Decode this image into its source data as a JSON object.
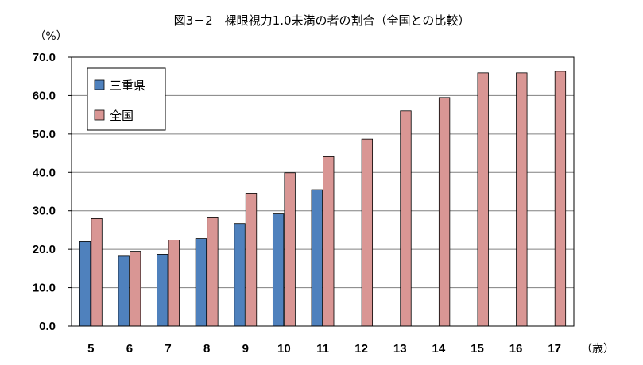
{
  "chart_data": {
    "type": "bar",
    "title": "図3－2　裸眼視力1.0未満の者の割合（全国との比較）",
    "ylabel_unit": "（%）",
    "xlabel_unit": "（歳）",
    "categories": [
      "5",
      "6",
      "7",
      "8",
      "9",
      "10",
      "11",
      "12",
      "13",
      "14",
      "15",
      "16",
      "17"
    ],
    "ylim": [
      0,
      70
    ],
    "yticks": [
      "0.0",
      "10.0",
      "20.0",
      "30.0",
      "40.0",
      "50.0",
      "60.0",
      "70.0"
    ],
    "grid": true,
    "legend_position": "top-left",
    "series": [
      {
        "name": "三重県",
        "color": "#4F81BD",
        "values": [
          22.0,
          18.2,
          18.7,
          22.8,
          26.7,
          29.2,
          35.5,
          null,
          null,
          null,
          null,
          null,
          null
        ]
      },
      {
        "name": "全国",
        "color": "#D99694",
        "values": [
          28.0,
          19.5,
          22.4,
          28.2,
          34.6,
          39.9,
          44.1,
          48.7,
          56.0,
          59.5,
          65.9,
          65.9,
          66.3
        ]
      }
    ]
  }
}
